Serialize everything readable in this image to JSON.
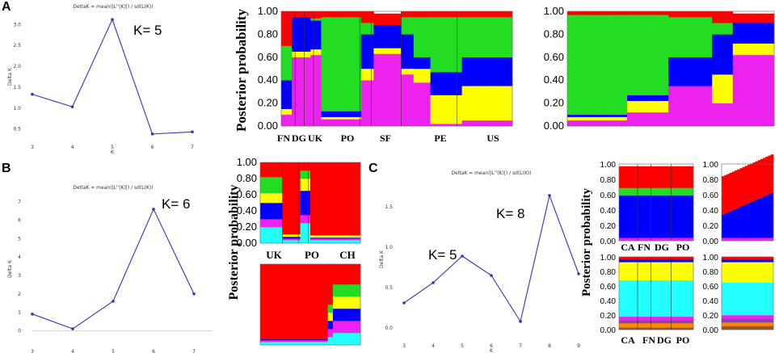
{
  "colors": {
    "red": "#ff0000",
    "green": "#22dd22",
    "blue": "#0000ff",
    "yellow": "#ffff00",
    "magenta": "#ee22ee",
    "cyan": "#22ffff",
    "black": "#000000",
    "line": "#3333bb",
    "orange": "#ff8800",
    "brown": "#995522",
    "purple": "#8844aa"
  },
  "chart_data": [
    {
      "id": "A_delta",
      "type": "line",
      "panel": "A",
      "title": "DeltaK = mean(|L''(K)|) / sd(L(K))",
      "xlabel": "K",
      "ylabel": "Delta K",
      "x": [
        3,
        4,
        5,
        6,
        7
      ],
      "y": [
        1.33,
        1.03,
        3.12,
        0.38,
        0.43
      ],
      "xlim": [
        3,
        7
      ],
      "ylim": [
        0.3,
        3.2
      ],
      "yticks": [
        "0.5",
        "1.0",
        "1.5",
        "2.0",
        "2.5",
        "3.0"
      ],
      "xticks": [
        "3",
        "4",
        "5",
        "6",
        "7"
      ],
      "annotation": "K= 5"
    },
    {
      "id": "B_delta",
      "type": "line",
      "panel": "B",
      "title": "DeltaK = mean(|L''(K)|) / sd(L(K))",
      "xlabel": "K",
      "ylabel": "Delta K",
      "x": [
        3,
        4,
        5,
        6,
        7
      ],
      "y": [
        0.9,
        0.1,
        1.6,
        6.6,
        2.0
      ],
      "xlim": [
        3,
        7
      ],
      "ylim": [
        -0.6,
        7.3
      ],
      "yticks": [
        "0",
        "1",
        "2",
        "3",
        "4",
        "5",
        "6",
        "7"
      ],
      "xticks": [
        "3",
        "4",
        "5",
        "6",
        "7"
      ],
      "annotation": "K= 6"
    },
    {
      "id": "C_delta",
      "type": "line",
      "panel": "C",
      "title": "DeltaK = mean(|L''(K)|) / sd(L(K))",
      "xlabel": "K",
      "ylabel": "Delta K",
      "x": [
        3,
        4,
        5,
        6,
        7,
        8,
        9
      ],
      "y": [
        0.31,
        0.56,
        0.89,
        0.65,
        0.08,
        1.64,
        0.67
      ],
      "xlim": [
        3,
        9
      ],
      "ylim": [
        -0.1,
        1.8
      ],
      "yticks": [
        "0.0",
        "0.5",
        "1.0",
        "1.5"
      ],
      "xticks": [
        "3",
        "4",
        "5",
        "6",
        "7",
        "8",
        "9"
      ],
      "annotations": [
        "K= 5",
        "K= 8"
      ]
    },
    {
      "id": "A_struct1",
      "type": "bar",
      "stacked": true,
      "ylabel": "Posterior probability",
      "yticks": [
        "0.00",
        "0.20",
        "0.40",
        "0.60",
        "0.80",
        "1.00"
      ],
      "groups": [
        "FN",
        "DG",
        "UK",
        "PO",
        "SF",
        "PE",
        "US"
      ],
      "components": [
        "magenta",
        "yellow",
        "blue",
        "green",
        "red"
      ]
    },
    {
      "id": "A_struct2",
      "type": "bar",
      "stacked": true,
      "yticks": [
        "0.00",
        "0.20",
        "0.40",
        "0.60",
        "0.80",
        "1.00"
      ],
      "components": [
        "magenta",
        "yellow",
        "blue",
        "green",
        "red"
      ]
    },
    {
      "id": "B_struct1",
      "type": "bar",
      "stacked": true,
      "ylabel": "Posterior probability",
      "yticks": [
        "0.00",
        "0.20",
        "0.40",
        "0.60",
        "0.80",
        "1.00"
      ],
      "groups": [
        "UK",
        "PO",
        "CH"
      ],
      "components": [
        "cyan",
        "magenta",
        "blue",
        "yellow",
        "green",
        "red"
      ]
    },
    {
      "id": "B_struct2",
      "type": "bar",
      "stacked": true,
      "components": [
        "cyan",
        "magenta",
        "blue",
        "yellow",
        "green",
        "red"
      ]
    },
    {
      "id": "C_struct1",
      "type": "bar",
      "stacked": true,
      "ylabel": "Posterior probability",
      "yticks": [
        "0.00",
        "0.20",
        "0.40",
        "0.60",
        "0.80",
        "1.00"
      ],
      "groups": [
        "CA",
        "FN",
        "DG",
        "PO"
      ],
      "components": [
        "magenta",
        "blue",
        "green",
        "red"
      ]
    },
    {
      "id": "C_struct2",
      "type": "bar",
      "stacked": true,
      "yticks": [
        "0.00",
        "0.20",
        "0.40",
        "0.60",
        "0.80",
        "1.00"
      ],
      "components": [
        "magenta",
        "blue",
        "green",
        "red"
      ]
    },
    {
      "id": "C_struct3",
      "type": "bar",
      "stacked": true,
      "yticks": [
        "0.00",
        "0.20",
        "0.40",
        "0.60",
        "0.80",
        "1.00"
      ],
      "groups": [
        "CA",
        "FN",
        "DG",
        "PO"
      ],
      "components": [
        "brown",
        "orange",
        "purple",
        "magenta",
        "cyan",
        "yellow",
        "blue",
        "red"
      ]
    },
    {
      "id": "C_struct4",
      "type": "bar",
      "stacked": true,
      "yticks": [
        "0.00",
        "0.20",
        "0.40",
        "0.60",
        "0.80",
        "1.00"
      ],
      "components": [
        "brown",
        "orange",
        "purple",
        "magenta",
        "cyan",
        "yellow",
        "blue",
        "red"
      ]
    }
  ],
  "panels": {
    "A": "A",
    "B": "B",
    "C": "C"
  },
  "ylabel_structure": "Posterior probability"
}
